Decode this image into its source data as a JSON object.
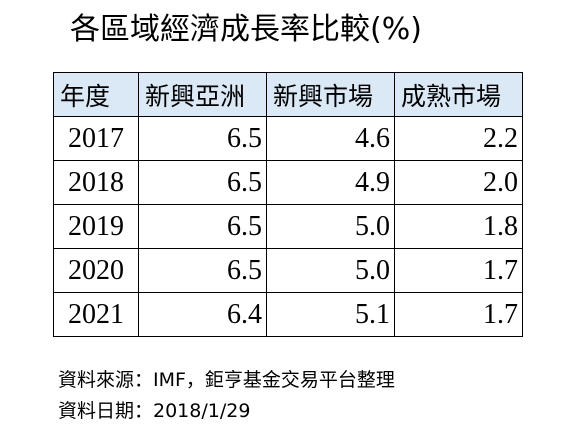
{
  "chart_data": {
    "type": "table",
    "title": "各區域經濟成長率比較(%)",
    "columns": [
      "年度",
      "新興亞洲",
      "新興市場",
      "成熟市場"
    ],
    "rows": [
      [
        "2017",
        "6.5",
        "4.6",
        "2.2"
      ],
      [
        "2018",
        "6.5",
        "4.9",
        "2.0"
      ],
      [
        "2019",
        "6.5",
        "5.0",
        "1.8"
      ],
      [
        "2020",
        "6.5",
        "5.0",
        "1.7"
      ],
      [
        "2021",
        "6.4",
        "5.1",
        "1.7"
      ]
    ]
  },
  "notes": {
    "source": "資料來源：IMF，鉅亨基金交易平台整理",
    "date": "資料日期：2018/1/29"
  },
  "colors": {
    "header_background": "#dbe9f6",
    "border": "#000000",
    "text": "#000000"
  }
}
